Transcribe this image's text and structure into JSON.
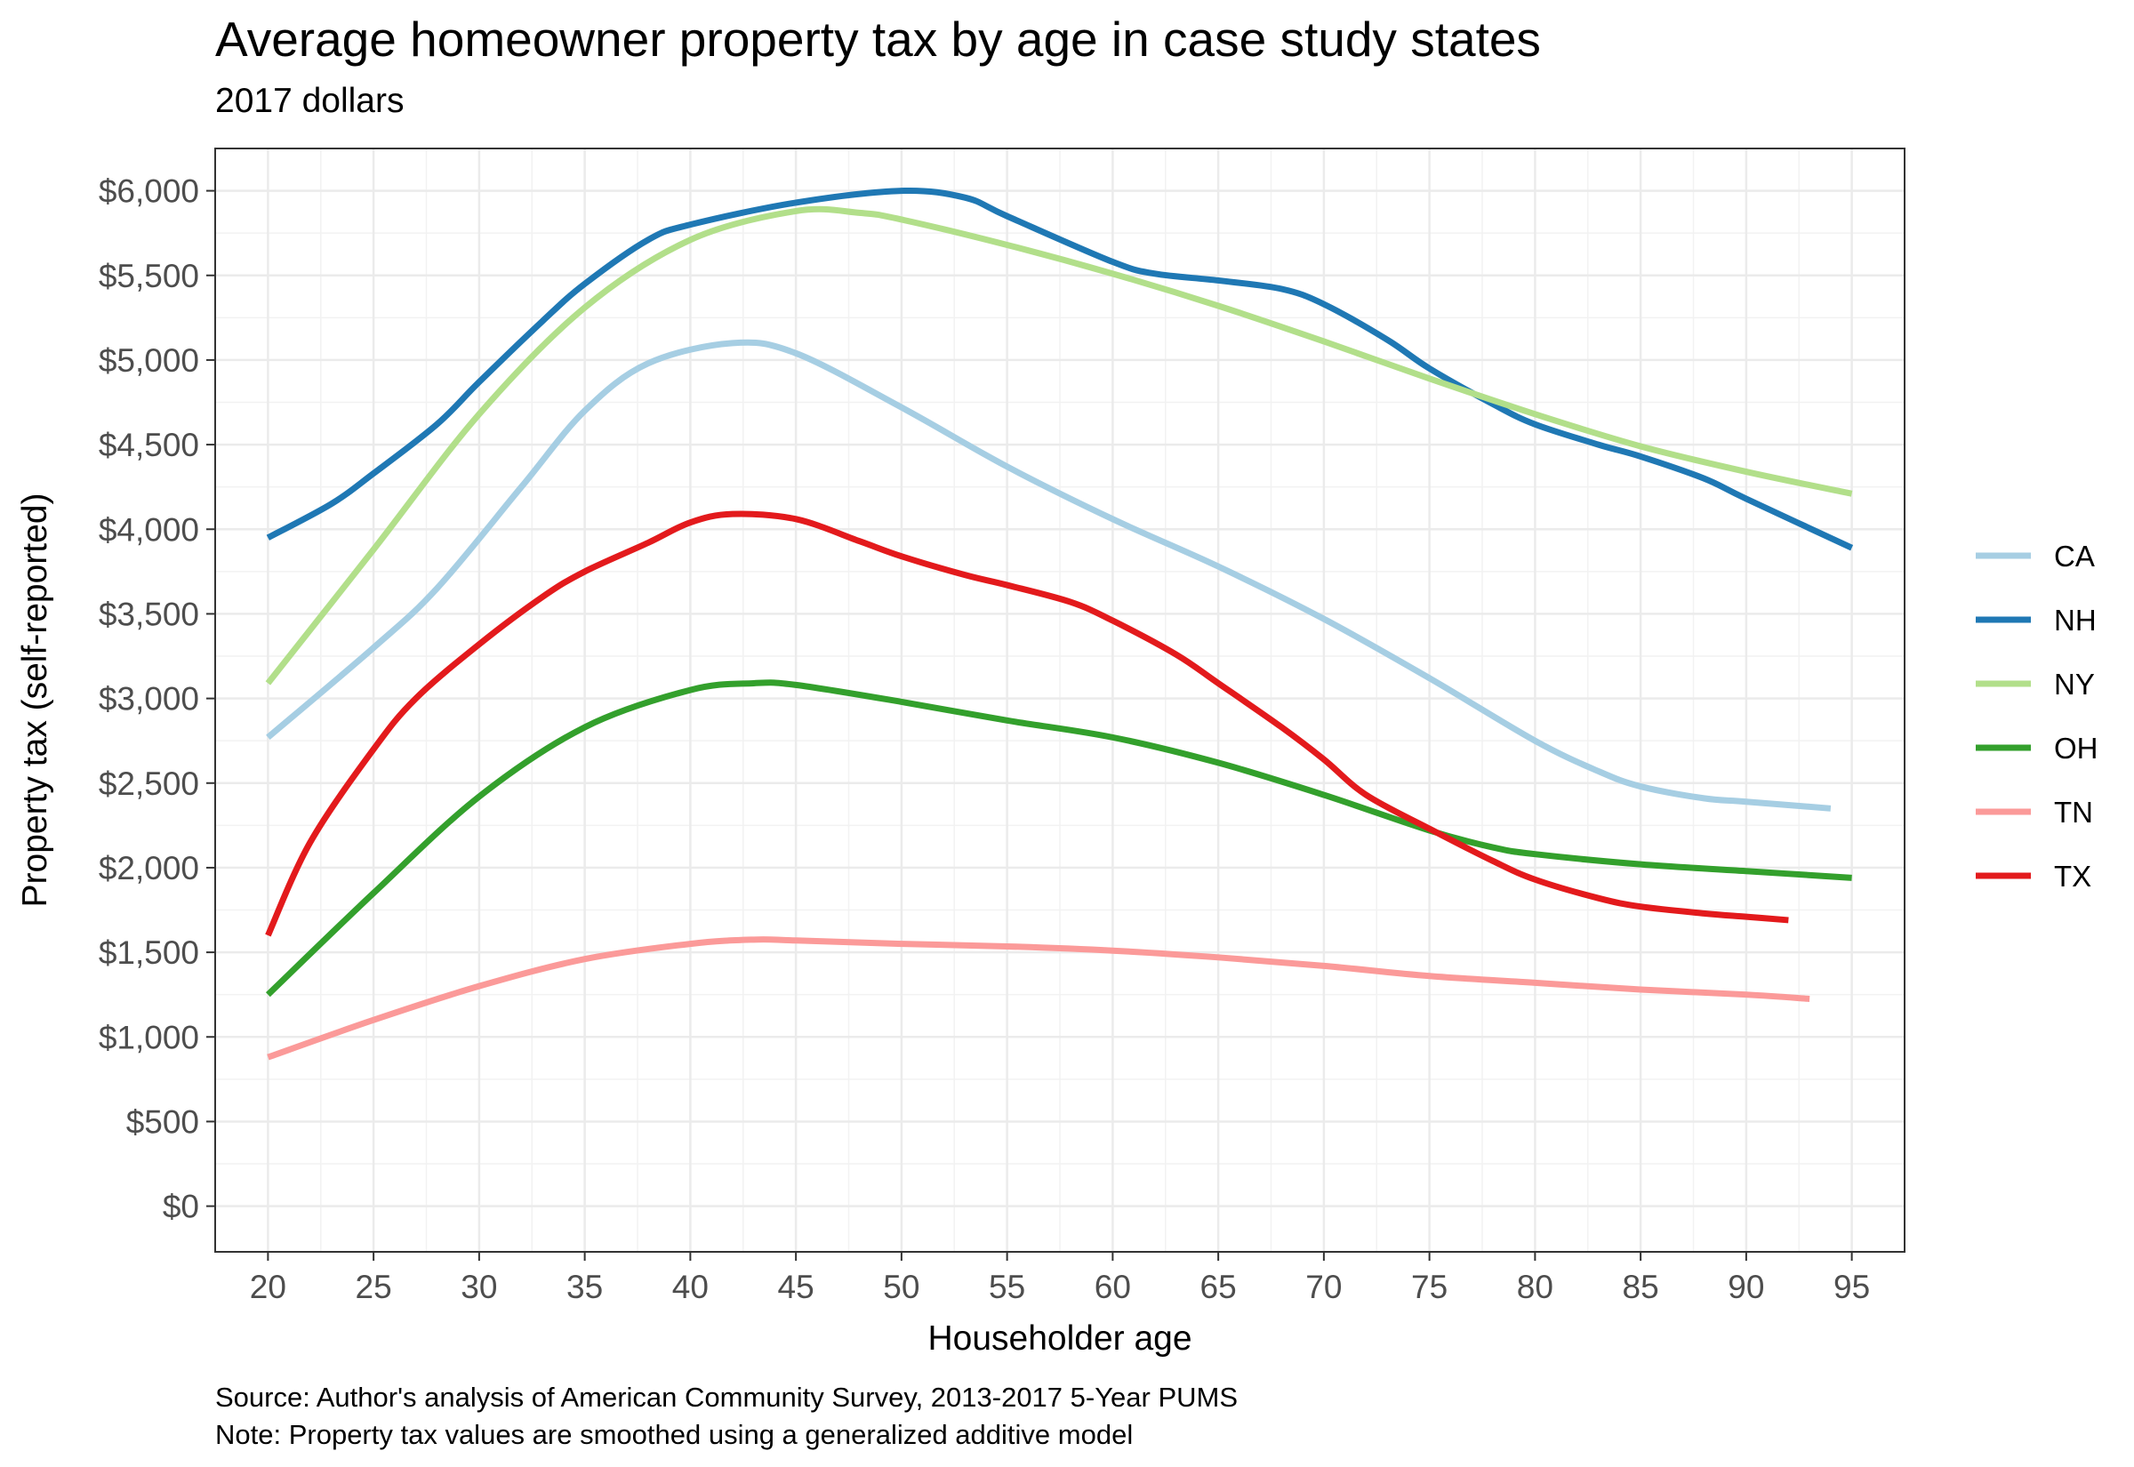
{
  "chart_data": {
    "type": "line",
    "title": "Average homeowner property tax by age in case study states",
    "subtitle": "2017 dollars",
    "xlabel": "Householder age",
    "ylabel": "Property tax (self-reported)",
    "caption_source": "Source: Author's analysis of American Community Survey, 2013-2017 5-Year PUMS",
    "caption_note": "Note: Property tax values are smoothed using a generalized additive model",
    "xlim": [
      17.5,
      97.5
    ],
    "ylim": [
      -270,
      6250
    ],
    "x_ticks": [
      20,
      25,
      30,
      35,
      40,
      45,
      50,
      55,
      60,
      65,
      70,
      75,
      80,
      85,
      90,
      95
    ],
    "y_ticks": [
      0,
      500,
      1000,
      1500,
      2000,
      2500,
      3000,
      3500,
      4000,
      4500,
      5000,
      5500,
      6000
    ],
    "y_tick_labels": [
      "$0",
      "$500",
      "$1,000",
      "$1,500",
      "$2,000",
      "$2,500",
      "$3,000",
      "$3,500",
      "$4,000",
      "$4,500",
      "$5,000",
      "$5,500",
      "$6,000"
    ],
    "grid": true,
    "legend_position": "right",
    "series": [
      {
        "name": "CA",
        "color": "#a6cee3",
        "x": [
          20,
          25,
          28,
          32,
          35,
          38,
          42,
          45,
          50,
          55,
          60,
          65,
          70,
          75,
          80,
          83,
          85,
          88,
          90,
          94
        ],
        "y": [
          2770,
          3300,
          3650,
          4250,
          4700,
          4980,
          5100,
          5040,
          4720,
          4370,
          4060,
          3780,
          3470,
          3120,
          2750,
          2570,
          2480,
          2410,
          2390,
          2350
        ]
      },
      {
        "name": "NH",
        "color": "#1f78b4",
        "x": [
          20,
          23,
          25,
          28,
          30,
          33,
          35,
          38,
          40,
          45,
          50,
          53,
          55,
          60,
          62,
          65,
          68,
          70,
          73,
          75,
          78,
          80,
          83,
          85,
          88,
          90,
          95
        ],
        "y": [
          3950,
          4150,
          4330,
          4620,
          4870,
          5230,
          5450,
          5710,
          5800,
          5930,
          6000,
          5960,
          5850,
          5580,
          5510,
          5470,
          5420,
          5330,
          5120,
          4950,
          4740,
          4620,
          4500,
          4430,
          4300,
          4180,
          3890
        ]
      },
      {
        "name": "NY",
        "color": "#b2df8a",
        "x": [
          20,
          25,
          30,
          35,
          40,
          45,
          48,
          50,
          55,
          60,
          65,
          70,
          75,
          80,
          85,
          90,
          95
        ],
        "y": [
          3090,
          3880,
          4680,
          5310,
          5710,
          5880,
          5870,
          5830,
          5680,
          5510,
          5320,
          5110,
          4890,
          4680,
          4490,
          4340,
          4210
        ]
      },
      {
        "name": "OH",
        "color": "#33a02c",
        "x": [
          20,
          25,
          30,
          35,
          40,
          43,
          45,
          50,
          55,
          60,
          65,
          70,
          75,
          78,
          80,
          85,
          90,
          95
        ],
        "y": [
          1250,
          1850,
          2420,
          2830,
          3050,
          3090,
          3080,
          2980,
          2870,
          2770,
          2620,
          2430,
          2220,
          2120,
          2080,
          2020,
          1980,
          1940
        ]
      },
      {
        "name": "TN",
        "color": "#fb9a99",
        "x": [
          20,
          25,
          30,
          35,
          40,
          43,
          45,
          50,
          55,
          60,
          65,
          70,
          75,
          80,
          85,
          90,
          93
        ],
        "y": [
          880,
          1100,
          1300,
          1460,
          1550,
          1575,
          1570,
          1550,
          1535,
          1510,
          1470,
          1420,
          1360,
          1320,
          1280,
          1250,
          1225
        ]
      },
      {
        "name": "TX",
        "color": "#e31a1c",
        "x": [
          20,
          22,
          25,
          27,
          30,
          33,
          35,
          38,
          40,
          42,
          45,
          48,
          50,
          53,
          55,
          58,
          60,
          63,
          65,
          68,
          70,
          72,
          75,
          78,
          80,
          83,
          85,
          88,
          90,
          92
        ],
        "y": [
          1600,
          2150,
          2700,
          3000,
          3320,
          3600,
          3750,
          3920,
          4040,
          4090,
          4060,
          3930,
          3840,
          3730,
          3670,
          3570,
          3460,
          3260,
          3090,
          2830,
          2640,
          2430,
          2230,
          2040,
          1930,
          1820,
          1770,
          1730,
          1710,
          1690
        ]
      }
    ]
  }
}
